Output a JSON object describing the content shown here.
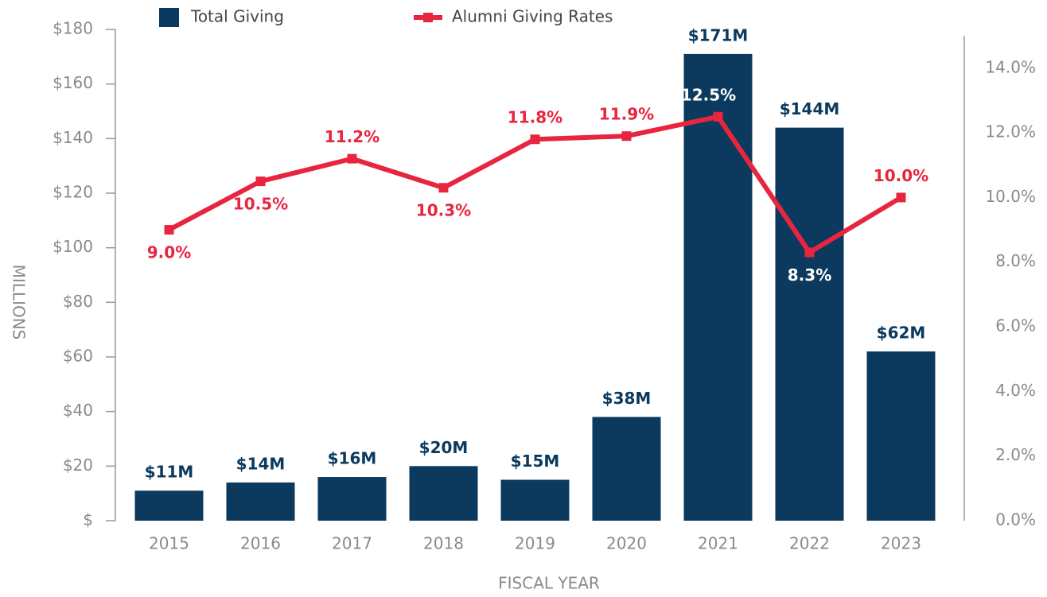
{
  "chart_data": {
    "type": "bar_line",
    "categories": [
      "2015",
      "2016",
      "2017",
      "2018",
      "2019",
      "2020",
      "2021",
      "2022",
      "2023"
    ],
    "series": [
      {
        "name": "Total Giving",
        "color": "#0b3a5e",
        "type": "bar",
        "values": [
          11,
          14,
          16,
          20,
          15,
          38,
          171,
          144,
          62
        ],
        "value_labels": [
          "$11M",
          "$14M",
          "$16M",
          "$20M",
          "$15M",
          "$38M",
          "$171M",
          "$144M",
          "$62M"
        ]
      },
      {
        "name": "Alumni Giving Rates",
        "color": "#e8253f",
        "type": "line",
        "axis": "y2",
        "values": [
          9.0,
          10.5,
          11.2,
          10.3,
          11.8,
          11.9,
          12.5,
          8.3,
          10.0
        ],
        "value_labels": [
          "9.0%",
          "10.5%",
          "11.2%",
          "10.3%",
          "11.8%",
          "11.9%",
          "12.5%",
          "8.3%",
          "10.0%"
        ]
      }
    ],
    "ylim": [
      0,
      180
    ],
    "yticks": [
      {
        "value": 0,
        "label": "$"
      },
      {
        "value": 20,
        "label": "$20"
      },
      {
        "value": 40,
        "label": "$40"
      },
      {
        "value": 60,
        "label": "$60"
      },
      {
        "value": 80,
        "label": "$80"
      },
      {
        "value": 100,
        "label": "$100"
      },
      {
        "value": 120,
        "label": "$120"
      },
      {
        "value": 140,
        "label": "$140"
      },
      {
        "value": 160,
        "label": "$160"
      },
      {
        "value": 180,
        "label": "$180"
      }
    ],
    "y2lim": [
      0,
      15.2
    ],
    "y2ticks": [
      {
        "value": 0,
        "label": "0.0%"
      },
      {
        "value": 2,
        "label": "2.0%"
      },
      {
        "value": 4,
        "label": "4.0%"
      },
      {
        "value": 6,
        "label": "6.0%"
      },
      {
        "value": 8,
        "label": "8.0%"
      },
      {
        "value": 10,
        "label": "10.0%"
      },
      {
        "value": 12,
        "label": "12.0%"
      },
      {
        "value": 14,
        "label": "14.0%"
      }
    ],
    "ylabel": "MILLIONS",
    "xlabel": "FISCAL YEAR",
    "grid": false,
    "legend": "top"
  }
}
